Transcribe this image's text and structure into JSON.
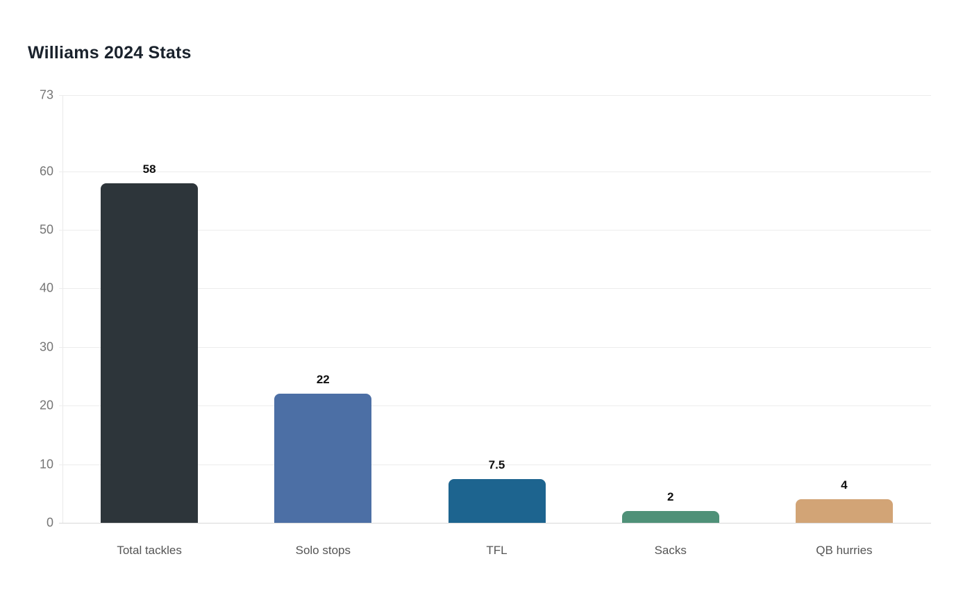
{
  "chart_data": {
    "type": "bar",
    "title": "Williams 2024 Stats",
    "categories": [
      "Total tackles",
      "Solo stops",
      "TFL",
      "Sacks",
      "QB hurries"
    ],
    "values": [
      58,
      22,
      7.5,
      2,
      4
    ],
    "value_labels": [
      "58",
      "22",
      "7.5",
      "2",
      "4"
    ],
    "bar_colors": [
      "#2d353a",
      "#4c6fa5",
      "#1d648f",
      "#4f9178",
      "#d2a476"
    ],
    "xlabel": "",
    "ylabel": "",
    "ylim": [
      0,
      73
    ],
    "yticks": [
      0,
      10,
      20,
      30,
      40,
      50,
      60,
      73
    ],
    "grid": "horizontal",
    "legend": "none",
    "background_color": "#ffffff",
    "gridline_color": "#ececec",
    "zero_line_color": "#d8d8d8",
    "title_color": "#1a222c",
    "ytick_color": "#757575",
    "category_label_color": "#545454",
    "value_label_color": "#0f0f0f"
  }
}
